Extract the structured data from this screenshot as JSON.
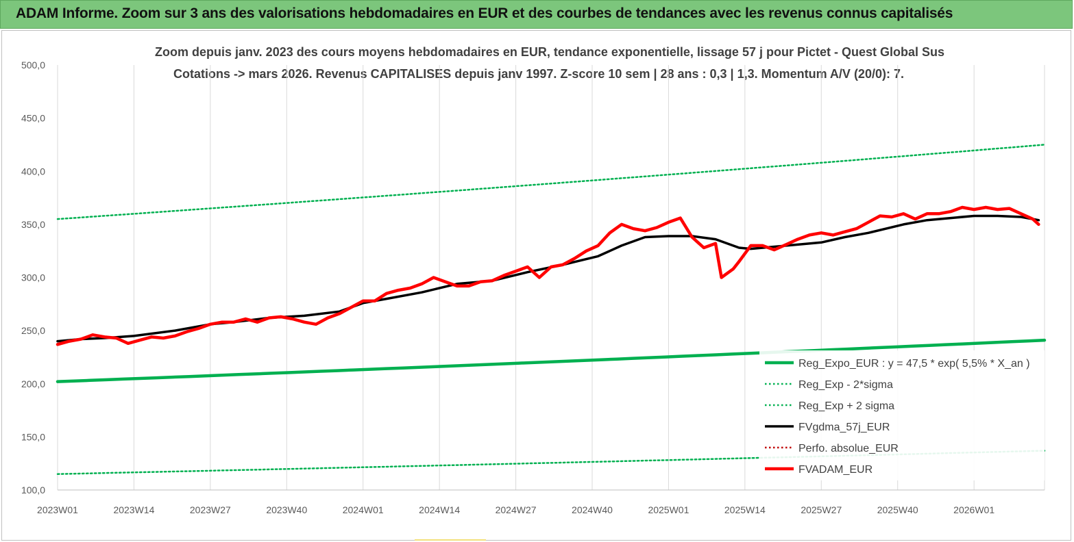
{
  "banner": {
    "title": "ADAM Informe. Zoom sur 3 ans des valorisations hebdomadaires en EUR et des courbes de tendances avec les revenus connus capitalisés"
  },
  "chart_data": {
    "type": "line",
    "title_line1": "Zoom depuis janv. 2023 des cours moyens hebdomadaires en EUR, tendance exponentielle, lissage 57 j pour Pictet - Quest Global Sus",
    "title_line2": "Cotations -> mars 2026. Revenus CAPITALISES depuis janv 1997. Z-score 10 sem | 28 ans : 0,3 | 1,3. Momentum A/V (20/0): 7.",
    "x_tick_labels": [
      "2023W01",
      "2023W14",
      "2023W27",
      "2023W40",
      "2024W01",
      "2024W14",
      "2024W27",
      "2024W40",
      "2025W01",
      "2025W14",
      "2025W27",
      "2025W40",
      "2026W01"
    ],
    "y_tick_labels": [
      "100,0",
      "150,0",
      "200,0",
      "250,0",
      "300,0",
      "350,0",
      "400,0",
      "450,0",
      "500,0"
    ],
    "ylim": [
      100,
      500
    ],
    "xlim_weeks": [
      0,
      168
    ],
    "grid": "vertical",
    "legend_position": "bottom-right",
    "series": [
      {
        "name": "Reg_Expo_EUR : y = 47,5 * exp( 5,5% *  X_an )",
        "color": "#00b050",
        "style": "solid-thick",
        "x": [
          0,
          168
        ],
        "values": [
          202,
          241
        ]
      },
      {
        "name": "Reg_Exp - 2*sigma",
        "color": "#00b050",
        "style": "dotted",
        "x": [
          0,
          168
        ],
        "values": [
          115,
          137
        ]
      },
      {
        "name": "Reg_Exp + 2 sigma",
        "color": "#00b050",
        "style": "dotted",
        "x": [
          0,
          168
        ],
        "values": [
          355,
          425
        ]
      },
      {
        "name": "FVgdma_57j_EUR",
        "color": "#000000",
        "style": "solid",
        "x": [
          0,
          4,
          8,
          13,
          20,
          26,
          30,
          36,
          42,
          48,
          52,
          56,
          62,
          68,
          74,
          80,
          86,
          92,
          96,
          100,
          104,
          108,
          112,
          116,
          118,
          122,
          126,
          130,
          134,
          138,
          144,
          148,
          152,
          156,
          160,
          164,
          167
        ],
        "values": [
          240,
          242,
          243,
          245,
          250,
          256,
          258,
          262,
          264,
          268,
          276,
          280,
          286,
          294,
          297,
          305,
          312,
          320,
          330,
          338,
          339,
          339,
          336,
          328,
          327,
          329,
          331,
          333,
          338,
          342,
          350,
          354,
          356,
          358,
          358,
          357,
          354
        ]
      },
      {
        "name": "Perfo. absolue_EUR",
        "color": "#c00000",
        "style": "dotted",
        "x": [],
        "values": []
      },
      {
        "name": "FVADAM_EUR",
        "color": "#ff0000",
        "style": "solid-thick",
        "x": [
          0,
          2,
          4,
          6,
          8,
          10,
          12,
          14,
          16,
          18,
          20,
          22,
          24,
          26,
          28,
          30,
          32,
          34,
          36,
          38,
          40,
          42,
          44,
          46,
          48,
          50,
          52,
          54,
          56,
          58,
          60,
          62,
          64,
          66,
          68,
          70,
          72,
          74,
          76,
          78,
          80,
          82,
          84,
          86,
          88,
          90,
          92,
          94,
          96,
          98,
          100,
          102,
          104,
          106,
          108,
          110,
          112,
          113,
          114,
          115,
          116,
          118,
          120,
          121,
          122,
          124,
          126,
          128,
          130,
          132,
          134,
          136,
          138,
          140,
          142,
          144,
          146,
          148,
          150,
          152,
          154,
          156,
          158,
          160,
          162,
          164,
          166,
          167
        ],
        "values": [
          237,
          240,
          242,
          246,
          244,
          243,
          238,
          241,
          244,
          243,
          245,
          249,
          252,
          256,
          258,
          258,
          261,
          258,
          262,
          263,
          261,
          258,
          256,
          262,
          266,
          272,
          278,
          278,
          285,
          288,
          290,
          294,
          300,
          296,
          292,
          292,
          296,
          297,
          302,
          306,
          310,
          300,
          310,
          312,
          318,
          325,
          330,
          342,
          350,
          346,
          344,
          347,
          352,
          356,
          338,
          328,
          332,
          300,
          304,
          308,
          315,
          330,
          330,
          328,
          326,
          331,
          336,
          340,
          342,
          340,
          343,
          346,
          352,
          358,
          357,
          360,
          355,
          360,
          360,
          362,
          366,
          364,
          366,
          364,
          365,
          360,
          355,
          350
        ]
      }
    ]
  }
}
